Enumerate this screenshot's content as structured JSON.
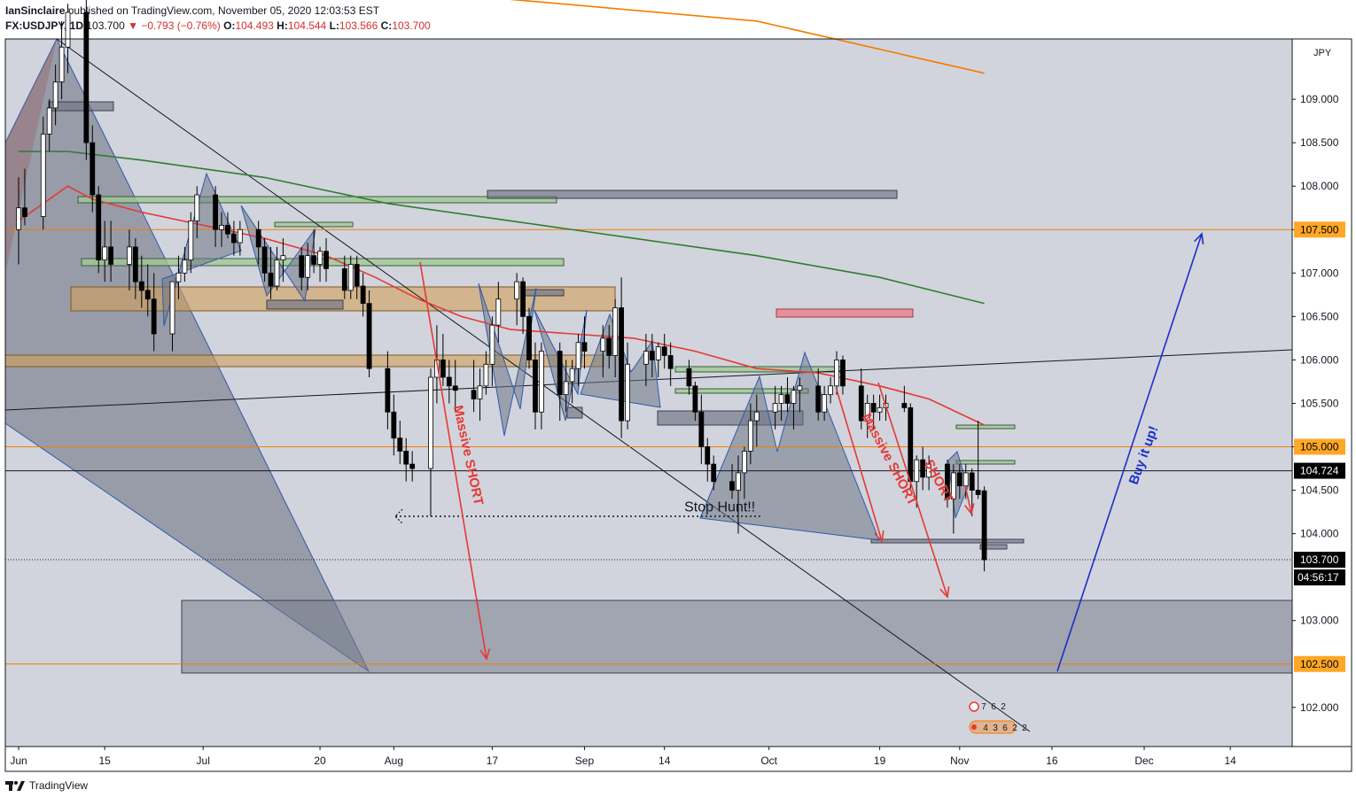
{
  "header": {
    "author": "IanSinclaire",
    "published_text": "published on TradingView.com, November 05, 2020 12:03:53 EST",
    "symbol": "FX:USDJPY, 1D",
    "last": "103.700",
    "change": "−0.793 (−0.76%)",
    "o_label": "O:",
    "o_value": "104.493",
    "h_label": "H:",
    "h_value": "104.544",
    "l_label": "L:",
    "l_value": "103.566",
    "c_label": "C:",
    "c_value": "103.700"
  },
  "footer": {
    "brand": "TradingView",
    "brand_icon": "tradingview-logo-icon"
  },
  "colors": {
    "background": "#d1d4dc",
    "up": "#ffffff",
    "down": "#000000",
    "orange": "#f57c00",
    "red": "#e53935",
    "green": "#2e7d32",
    "blue": "#1a2fcc",
    "label_orange_bg": "#ffa726",
    "label_black_bg": "#000000"
  },
  "chart_data": {
    "type": "candlestick",
    "currency": "JPY",
    "y_range": [
      101.5,
      110.2
    ],
    "y_ticks": [
      "102.000",
      "103.000",
      "104.000",
      "104.500",
      "105.000",
      "105.500",
      "106.000",
      "106.500",
      "107.000",
      "107.500",
      "108.000",
      "108.500",
      "109.000"
    ],
    "x_ticks": [
      {
        "label": "Jun",
        "day": 0
      },
      {
        "label": "15",
        "day": 14
      },
      {
        "label": "Jul",
        "day": 30
      },
      {
        "label": "20",
        "day": 49
      },
      {
        "label": "Aug",
        "day": 61
      },
      {
        "label": "17",
        "day": 77
      },
      {
        "label": "Sep",
        "day": 92
      },
      {
        "label": "14",
        "day": 105
      },
      {
        "label": "Oct",
        "day": 122
      },
      {
        "label": "19",
        "day": 140
      },
      {
        "label": "Nov",
        "day": 153
      },
      {
        "label": "16",
        "day": 168
      },
      {
        "label": "Dec",
        "day": 183
      },
      {
        "label": "14",
        "day": 197
      }
    ],
    "candles": [
      {
        "d": 0,
        "o": 107.5,
        "h": 108.1,
        "l": 107.1,
        "c": 107.75
      },
      {
        "d": 1,
        "o": 107.75,
        "h": 108.2,
        "l": 107.55,
        "c": 107.65
      },
      {
        "d": 4,
        "o": 107.65,
        "h": 108.8,
        "l": 107.5,
        "c": 108.6
      },
      {
        "d": 5,
        "o": 108.6,
        "h": 109.0,
        "l": 108.4,
        "c": 108.9
      },
      {
        "d": 6,
        "o": 108.9,
        "h": 109.4,
        "l": 108.7,
        "c": 109.2
      },
      {
        "d": 7,
        "o": 109.2,
        "h": 109.9,
        "l": 109.0,
        "c": 109.6
      },
      {
        "d": 8,
        "o": 109.6,
        "h": 110.1,
        "l": 109.3,
        "c": 110.0
      },
      {
        "d": 11,
        "o": 110.0,
        "h": 110.2,
        "l": 108.3,
        "c": 108.5
      },
      {
        "d": 12,
        "o": 108.5,
        "h": 108.7,
        "l": 107.7,
        "c": 107.9
      },
      {
        "d": 13,
        "o": 107.9,
        "h": 108.0,
        "l": 107.0,
        "c": 107.15
      },
      {
        "d": 14,
        "o": 107.15,
        "h": 107.6,
        "l": 106.9,
        "c": 107.3
      },
      {
        "d": 15,
        "o": 107.3,
        "h": 107.6,
        "l": 106.9,
        "c": 107.1
      },
      {
        "d": 18,
        "o": 107.1,
        "h": 107.5,
        "l": 106.8,
        "c": 107.3
      },
      {
        "d": 19,
        "o": 107.3,
        "h": 107.4,
        "l": 106.7,
        "c": 106.9
      },
      {
        "d": 20,
        "o": 106.9,
        "h": 107.2,
        "l": 106.6,
        "c": 106.8
      },
      {
        "d": 21,
        "o": 106.8,
        "h": 107.1,
        "l": 106.5,
        "c": 106.7
      },
      {
        "d": 22,
        "o": 106.7,
        "h": 107.0,
        "l": 106.1,
        "c": 106.3
      },
      {
        "d": 25,
        "o": 106.3,
        "h": 106.9,
        "l": 106.1,
        "c": 106.9
      },
      {
        "d": 26,
        "o": 106.9,
        "h": 107.2,
        "l": 106.7,
        "c": 107.0
      },
      {
        "d": 27,
        "o": 107.0,
        "h": 107.3,
        "l": 106.9,
        "c": 107.15
      },
      {
        "d": 28,
        "o": 107.15,
        "h": 107.7,
        "l": 107.0,
        "c": 107.6
      },
      {
        "d": 29,
        "o": 107.6,
        "h": 108.0,
        "l": 107.4,
        "c": 107.9
      },
      {
        "d": 32,
        "o": 107.9,
        "h": 108.0,
        "l": 107.3,
        "c": 107.5
      },
      {
        "d": 33,
        "o": 107.5,
        "h": 107.7,
        "l": 107.3,
        "c": 107.55
      },
      {
        "d": 34,
        "o": 107.55,
        "h": 107.7,
        "l": 107.4,
        "c": 107.45
      },
      {
        "d": 35,
        "o": 107.45,
        "h": 107.6,
        "l": 107.2,
        "c": 107.35
      },
      {
        "d": 36,
        "o": 107.35,
        "h": 107.6,
        "l": 107.2,
        "c": 107.5
      },
      {
        "d": 39,
        "o": 107.5,
        "h": 107.6,
        "l": 107.1,
        "c": 107.3
      },
      {
        "d": 40,
        "o": 107.3,
        "h": 107.4,
        "l": 106.9,
        "c": 107.0
      },
      {
        "d": 41,
        "o": 107.0,
        "h": 107.3,
        "l": 106.7,
        "c": 106.85
      },
      {
        "d": 42,
        "o": 106.85,
        "h": 107.3,
        "l": 106.8,
        "c": 107.15
      },
      {
        "d": 43,
        "o": 107.15,
        "h": 107.4,
        "l": 106.9,
        "c": 107.2
      },
      {
        "d": 46,
        "o": 107.2,
        "h": 107.3,
        "l": 106.8,
        "c": 106.95
      },
      {
        "d": 47,
        "o": 106.95,
        "h": 107.35,
        "l": 106.8,
        "c": 107.2
      },
      {
        "d": 48,
        "o": 107.2,
        "h": 107.5,
        "l": 107.0,
        "c": 107.1
      },
      {
        "d": 49,
        "o": 107.1,
        "h": 107.3,
        "l": 106.9,
        "c": 107.25
      },
      {
        "d": 50,
        "o": 107.25,
        "h": 107.4,
        "l": 106.9,
        "c": 107.05
      },
      {
        "d": 53,
        "o": 107.05,
        "h": 107.2,
        "l": 106.7,
        "c": 106.8
      },
      {
        "d": 54,
        "o": 106.8,
        "h": 107.2,
        "l": 106.7,
        "c": 107.1
      },
      {
        "d": 55,
        "o": 107.1,
        "h": 107.2,
        "l": 106.7,
        "c": 106.85
      },
      {
        "d": 56,
        "o": 106.85,
        "h": 107.0,
        "l": 106.5,
        "c": 106.65
      },
      {
        "d": 57,
        "o": 106.65,
        "h": 106.8,
        "l": 105.8,
        "c": 105.9
      },
      {
        "d": 60,
        "o": 105.9,
        "h": 106.1,
        "l": 105.2,
        "c": 105.4
      },
      {
        "d": 61,
        "o": 105.4,
        "h": 105.6,
        "l": 104.9,
        "c": 105.1
      },
      {
        "d": 62,
        "o": 105.1,
        "h": 105.3,
        "l": 104.8,
        "c": 104.95
      },
      {
        "d": 63,
        "o": 104.95,
        "h": 105.1,
        "l": 104.6,
        "c": 104.8
      },
      {
        "d": 64,
        "o": 104.8,
        "h": 104.95,
        "l": 104.6,
        "c": 104.75
      },
      {
        "d": 67,
        "o": 104.75,
        "h": 105.9,
        "l": 104.2,
        "c": 105.8
      },
      {
        "d": 68,
        "o": 105.8,
        "h": 106.4,
        "l": 105.5,
        "c": 106.0
      },
      {
        "d": 69,
        "o": 106.0,
        "h": 106.3,
        "l": 105.7,
        "c": 105.8
      },
      {
        "d": 70,
        "o": 105.8,
        "h": 106.0,
        "l": 105.5,
        "c": 105.7
      },
      {
        "d": 71,
        "o": 105.7,
        "h": 106.0,
        "l": 105.4,
        "c": 105.65
      },
      {
        "d": 74,
        "o": 105.65,
        "h": 106.0,
        "l": 105.4,
        "c": 105.55
      },
      {
        "d": 75,
        "o": 105.55,
        "h": 105.9,
        "l": 105.3,
        "c": 105.7
      },
      {
        "d": 76,
        "o": 105.7,
        "h": 106.1,
        "l": 105.6,
        "c": 105.95
      },
      {
        "d": 77,
        "o": 105.95,
        "h": 106.5,
        "l": 105.7,
        "c": 106.4
      },
      {
        "d": 78,
        "o": 106.4,
        "h": 106.9,
        "l": 106.2,
        "c": 106.7
      },
      {
        "d": 81,
        "o": 106.7,
        "h": 107.0,
        "l": 106.4,
        "c": 106.9
      },
      {
        "d": 82,
        "o": 106.9,
        "h": 106.95,
        "l": 106.3,
        "c": 106.5
      },
      {
        "d": 83,
        "o": 106.5,
        "h": 106.6,
        "l": 105.9,
        "c": 106.0
      },
      {
        "d": 84,
        "o": 106.0,
        "h": 106.2,
        "l": 105.2,
        "c": 105.4
      },
      {
        "d": 85,
        "o": 105.4,
        "h": 106.2,
        "l": 105.2,
        "c": 106.1
      },
      {
        "d": 88,
        "o": 106.1,
        "h": 106.2,
        "l": 105.3,
        "c": 105.6
      },
      {
        "d": 89,
        "o": 105.6,
        "h": 106.0,
        "l": 105.4,
        "c": 105.75
      },
      {
        "d": 90,
        "o": 105.75,
        "h": 106.0,
        "l": 105.5,
        "c": 105.9
      },
      {
        "d": 91,
        "o": 105.9,
        "h": 106.3,
        "l": 105.7,
        "c": 106.2
      },
      {
        "d": 92,
        "o": 106.2,
        "h": 106.5,
        "l": 105.9,
        "c": 106.1
      },
      {
        "d": 95,
        "o": 106.1,
        "h": 106.4,
        "l": 105.8,
        "c": 106.25
      },
      {
        "d": 96,
        "o": 106.25,
        "h": 106.4,
        "l": 105.9,
        "c": 106.05
      },
      {
        "d": 97,
        "o": 106.05,
        "h": 106.7,
        "l": 105.8,
        "c": 106.6
      },
      {
        "d": 98,
        "o": 106.6,
        "h": 106.95,
        "l": 105.1,
        "c": 105.3
      },
      {
        "d": 99,
        "o": 105.3,
        "h": 106.2,
        "l": 105.2,
        "c": 105.95
      },
      {
        "d": 102,
        "o": 105.95,
        "h": 106.3,
        "l": 105.7,
        "c": 106.1
      },
      {
        "d": 103,
        "o": 106.1,
        "h": 106.3,
        "l": 105.8,
        "c": 106.0
      },
      {
        "d": 104,
        "o": 106.0,
        "h": 106.2,
        "l": 105.8,
        "c": 106.15
      },
      {
        "d": 105,
        "o": 106.15,
        "h": 106.3,
        "l": 105.9,
        "c": 106.05
      },
      {
        "d": 106,
        "o": 106.05,
        "h": 106.2,
        "l": 105.7,
        "c": 105.9
      },
      {
        "d": 109,
        "o": 105.9,
        "h": 106.0,
        "l": 105.6,
        "c": 105.7
      },
      {
        "d": 110,
        "o": 105.7,
        "h": 105.75,
        "l": 105.3,
        "c": 105.4
      },
      {
        "d": 111,
        "o": 105.4,
        "h": 105.6,
        "l": 104.8,
        "c": 105.0
      },
      {
        "d": 112,
        "o": 105.0,
        "h": 105.1,
        "l": 104.6,
        "c": 104.8
      },
      {
        "d": 113,
        "o": 104.8,
        "h": 104.9,
        "l": 104.5,
        "c": 104.6
      },
      {
        "d": 116,
        "o": 104.6,
        "h": 104.8,
        "l": 104.4,
        "c": 104.5
      },
      {
        "d": 117,
        "o": 104.5,
        "h": 104.9,
        "l": 104.0,
        "c": 104.7
      },
      {
        "d": 118,
        "o": 104.7,
        "h": 105.0,
        "l": 104.4,
        "c": 104.95
      },
      {
        "d": 119,
        "o": 104.95,
        "h": 105.5,
        "l": 104.8,
        "c": 105.3
      },
      {
        "d": 120,
        "o": 105.3,
        "h": 105.6,
        "l": 105.0,
        "c": 105.4
      },
      {
        "d": 123,
        "o": 105.4,
        "h": 105.7,
        "l": 105.2,
        "c": 105.5
      },
      {
        "d": 124,
        "o": 105.5,
        "h": 105.7,
        "l": 105.3,
        "c": 105.6
      },
      {
        "d": 125,
        "o": 105.6,
        "h": 105.8,
        "l": 105.4,
        "c": 105.5
      },
      {
        "d": 126,
        "o": 105.5,
        "h": 105.7,
        "l": 105.2,
        "c": 105.65
      },
      {
        "d": 127,
        "o": 105.65,
        "h": 105.8,
        "l": 105.4,
        "c": 105.7
      },
      {
        "d": 130,
        "o": 105.7,
        "h": 105.9,
        "l": 105.3,
        "c": 105.4
      },
      {
        "d": 131,
        "o": 105.4,
        "h": 105.7,
        "l": 105.3,
        "c": 105.6
      },
      {
        "d": 132,
        "o": 105.6,
        "h": 105.8,
        "l": 105.5,
        "c": 105.7
      },
      {
        "d": 133,
        "o": 105.7,
        "h": 106.1,
        "l": 105.6,
        "c": 106.0
      },
      {
        "d": 134,
        "o": 106.0,
        "h": 106.05,
        "l": 105.6,
        "c": 105.7
      },
      {
        "d": 137,
        "o": 105.7,
        "h": 105.9,
        "l": 105.2,
        "c": 105.3
      },
      {
        "d": 138,
        "o": 105.3,
        "h": 105.6,
        "l": 105.1,
        "c": 105.5
      },
      {
        "d": 139,
        "o": 105.5,
        "h": 105.6,
        "l": 105.2,
        "c": 105.4
      },
      {
        "d": 140,
        "o": 105.4,
        "h": 105.6,
        "l": 105.3,
        "c": 105.45
      },
      {
        "d": 141,
        "o": 105.45,
        "h": 105.6,
        "l": 105.3,
        "c": 105.5
      },
      {
        "d": 144,
        "o": 105.5,
        "h": 105.7,
        "l": 105.4,
        "c": 105.45
      },
      {
        "d": 145,
        "o": 105.45,
        "h": 105.5,
        "l": 104.5,
        "c": 104.6
      },
      {
        "d": 146,
        "o": 104.6,
        "h": 104.9,
        "l": 104.3,
        "c": 104.85
      },
      {
        "d": 147,
        "o": 104.85,
        "h": 105.0,
        "l": 104.5,
        "c": 104.65
      },
      {
        "d": 148,
        "o": 104.65,
        "h": 104.9,
        "l": 104.5,
        "c": 104.8
      },
      {
        "d": 151,
        "o": 104.8,
        "h": 104.85,
        "l": 104.3,
        "c": 104.4
      },
      {
        "d": 152,
        "o": 104.4,
        "h": 104.8,
        "l": 104.0,
        "c": 104.7
      },
      {
        "d": 153,
        "o": 104.7,
        "h": 104.8,
        "l": 104.4,
        "c": 104.55
      },
      {
        "d": 154,
        "o": 104.55,
        "h": 104.8,
        "l": 104.4,
        "c": 104.7
      },
      {
        "d": 155,
        "o": 104.7,
        "h": 104.75,
        "l": 104.2,
        "c": 104.5
      },
      {
        "d": 156,
        "o": 104.5,
        "h": 105.3,
        "l": 104.4,
        "c": 104.45
      },
      {
        "d": 157,
        "o": 104.493,
        "h": 104.544,
        "l": 103.566,
        "c": 103.7
      }
    ],
    "moving_averages": [
      {
        "color": "orange",
        "points": [
          [
            0,
            110.6
          ],
          [
            40,
            110.4
          ],
          [
            80,
            110.15
          ],
          [
            120,
            109.9
          ],
          [
            157,
            109.3
          ]
        ]
      },
      {
        "color": "green",
        "points": [
          [
            0,
            108.4
          ],
          [
            8,
            108.4
          ],
          [
            20,
            108.3
          ],
          [
            40,
            108.1
          ],
          [
            60,
            107.8
          ],
          [
            80,
            107.6
          ],
          [
            100,
            107.4
          ],
          [
            120,
            107.2
          ],
          [
            140,
            106.95
          ],
          [
            157,
            106.65
          ]
        ]
      },
      {
        "color": "red",
        "points": [
          [
            0,
            107.6
          ],
          [
            4,
            107.8
          ],
          [
            8,
            108.0
          ],
          [
            12,
            107.85
          ],
          [
            20,
            107.7
          ],
          [
            30,
            107.55
          ],
          [
            40,
            107.4
          ],
          [
            50,
            107.2
          ],
          [
            58,
            106.95
          ],
          [
            65,
            106.7
          ],
          [
            72,
            106.5
          ],
          [
            80,
            106.35
          ],
          [
            90,
            106.3
          ],
          [
            100,
            106.25
          ],
          [
            110,
            106.1
          ],
          [
            120,
            105.9
          ],
          [
            130,
            105.85
          ],
          [
            140,
            105.7
          ],
          [
            148,
            105.55
          ],
          [
            157,
            105.25
          ]
        ]
      }
    ],
    "price_labels": [
      {
        "value": 107.5,
        "text": "107.500",
        "style": "orange"
      },
      {
        "value": 105.0,
        "text": "105.000",
        "style": "orange"
      },
      {
        "value": 104.724,
        "text": "104.724",
        "style": "black"
      },
      {
        "value": 103.7,
        "text": "103.700",
        "style": "black"
      },
      {
        "value": 102.5,
        "text": "102.500",
        "style": "orange"
      }
    ],
    "countdown": "04:56:17",
    "annotations": [
      {
        "text": "Massive SHORT",
        "angle": 78,
        "x_day": 73,
        "y": 104.9,
        "color": "red"
      },
      {
        "text": "Massive SHORT",
        "angle": 62,
        "x_day": 141.5,
        "y": 104.85,
        "color": "red"
      },
      {
        "text": "SHORT",
        "angle": 62,
        "x_day": 149.5,
        "y": 104.6,
        "color": "red"
      },
      {
        "text": "Stop Hunt!!",
        "angle": 0,
        "x_day": 114,
        "y": 104.3,
        "color": "black"
      },
      {
        "text": "Buy it up!",
        "angle": -70,
        "x_day": 183,
        "y": 104.9,
        "color": "blue"
      }
    ],
    "event_badges": {
      "row1": [
        "7",
        "6",
        "2"
      ],
      "row2": [
        "4",
        "3",
        "6",
        "2",
        "2"
      ]
    }
  }
}
